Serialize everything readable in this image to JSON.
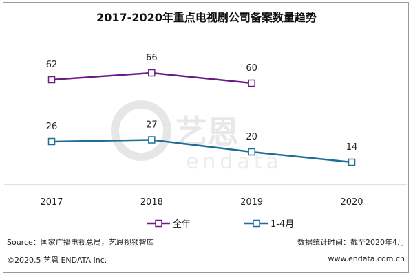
{
  "chart_data": {
    "type": "line",
    "title": "2017-2020年重点电视剧公司备案数量趋势",
    "categories": [
      "2017",
      "2018",
      "2019",
      "2020"
    ],
    "series": [
      {
        "name": "全年",
        "values": [
          62,
          66,
          60,
          null
        ],
        "color": "#6a1b87"
      },
      {
        "name": "1-4月",
        "values": [
          26,
          27,
          20,
          14
        ],
        "color": "#1f6e99"
      }
    ],
    "legend_position": "bottom",
    "grid": false
  },
  "footer": {
    "source": "Source：国家广播电视总局，艺恩视频智库",
    "copyright": "©2020.5 艺恩 ENDATA Inc.",
    "note": "数据统计时间：截至2020年4月",
    "url": "www.endata.com.cn"
  },
  "watermark": {
    "brand_cn": "艺恩",
    "brand_en": "endata"
  }
}
